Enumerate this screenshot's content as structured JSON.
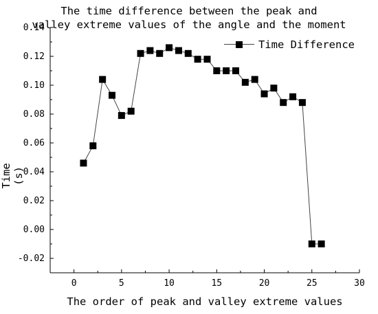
{
  "chart_data": {
    "type": "line",
    "title_lines": [
      "The time difference between the peak and",
      "valley extreme values of the angle and the moment"
    ],
    "xlabel": "The order of peak and valley extreme values",
    "ylabel": "Time (s)",
    "xlim": [
      -2.5,
      30
    ],
    "ylim": [
      -0.03,
      0.14
    ],
    "x_ticks": [
      0,
      5,
      10,
      15,
      20,
      25,
      30
    ],
    "y_ticks": [
      -0.02,
      0.0,
      0.02,
      0.04,
      0.06,
      0.08,
      0.1,
      0.12,
      0.14
    ],
    "y_tick_labels": [
      "-0.02",
      "0.00",
      "0.02",
      "0.04",
      "0.06",
      "0.08",
      "0.10",
      "0.12",
      "0.14"
    ],
    "legend_position": "top-right",
    "series": [
      {
        "name": "Time Difference",
        "color": "#000000",
        "line_color": "#444444",
        "marker": "square",
        "x": [
          1,
          2,
          3,
          4,
          5,
          6,
          7,
          8,
          9,
          10,
          11,
          12,
          13,
          14,
          15,
          16,
          17,
          18,
          19,
          20,
          21,
          22,
          23,
          24,
          25,
          26
        ],
        "y": [
          0.046,
          0.058,
          0.104,
          0.093,
          0.079,
          0.082,
          0.122,
          0.124,
          0.122,
          0.126,
          0.124,
          0.122,
          0.118,
          0.118,
          0.11,
          0.11,
          0.11,
          0.102,
          0.104,
          0.094,
          0.098,
          0.088,
          0.092,
          0.088,
          -0.01,
          -0.01
        ]
      }
    ]
  }
}
